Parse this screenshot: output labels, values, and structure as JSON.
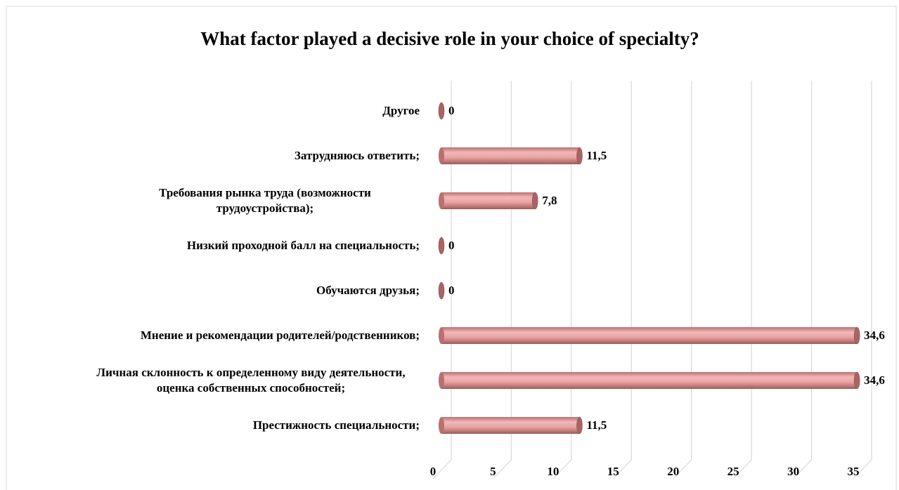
{
  "chart_data": {
    "type": "bar",
    "orientation": "horizontal",
    "title": "What factor played a decisive role in your choice of specialty?",
    "categories": [
      "Другое",
      "Затрудняюсь ответить;",
      "Требования рынка труда (возможности трудоустройства);",
      "Низкий проходной балл на специальность;",
      "Обучаются друзья;",
      "Мнение и рекомендации родителей/родственников;",
      "Личная склонность к определенному виду деятельности, оценка собственных способностей;",
      "Престижность специальности;"
    ],
    "values": [
      0,
      11.5,
      7.8,
      0,
      0,
      34.6,
      34.6,
      11.5
    ],
    "value_labels": [
      "0",
      "11,5",
      "7,8",
      "0",
      "0",
      "34,6",
      "34,6",
      "11,5"
    ],
    "color": "#e8a3a3",
    "xlim": [
      0,
      35
    ],
    "xticks": [
      0,
      5,
      10,
      15,
      20,
      25,
      30,
      35
    ],
    "grid": true
  }
}
